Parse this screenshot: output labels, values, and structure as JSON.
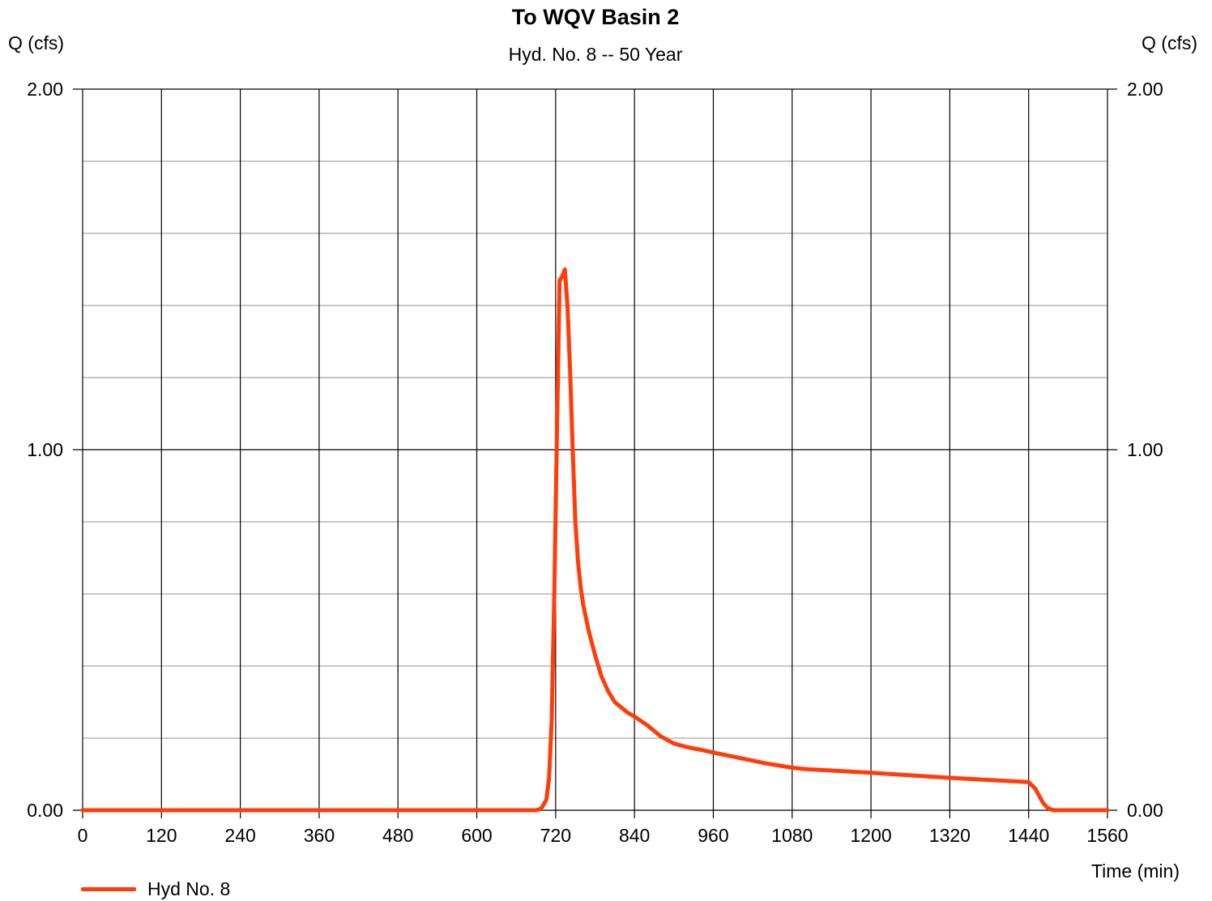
{
  "chart_data": {
    "type": "line",
    "title": "To WQV Basin 2",
    "subtitle": "Hyd. No. 8 -- 50 Year",
    "ylabel_left": "Q (cfs)",
    "ylabel_right": "Q (cfs)",
    "xlabel": "Time (min)",
    "xlim": [
      0,
      1560
    ],
    "ylim": [
      0,
      2
    ],
    "x_ticks": [
      0,
      120,
      240,
      360,
      480,
      600,
      720,
      840,
      960,
      1080,
      1200,
      1320,
      1440,
      1560
    ],
    "y_ticks": [
      "0.00",
      "1.00",
      "2.00"
    ],
    "y_minor_step": 0.2,
    "grid": true,
    "legend_position": "bottom-left",
    "series": [
      {
        "name": "Hyd No. 8",
        "color": "#ff3c0a",
        "x": [
          0,
          600,
          690,
          696,
          700,
          706,
          710,
          714,
          718,
          722,
          726,
          730,
          734,
          738,
          742,
          746,
          750,
          754,
          758,
          762,
          770,
          780,
          790,
          800,
          810,
          820,
          830,
          840,
          860,
          880,
          900,
          920,
          940,
          960,
          1000,
          1040,
          1080,
          1100,
          1140,
          1200,
          1260,
          1320,
          1380,
          1440,
          1450,
          1456,
          1462,
          1468,
          1474,
          1480,
          1560
        ],
        "y": [
          0,
          0,
          0,
          0.003,
          0.01,
          0.03,
          0.09,
          0.25,
          0.6,
          1.05,
          1.47,
          1.48,
          1.5,
          1.4,
          1.22,
          1.0,
          0.8,
          0.69,
          0.62,
          0.57,
          0.5,
          0.43,
          0.37,
          0.33,
          0.3,
          0.285,
          0.27,
          0.26,
          0.235,
          0.205,
          0.185,
          0.175,
          0.168,
          0.16,
          0.145,
          0.13,
          0.118,
          0.114,
          0.11,
          0.104,
          0.097,
          0.09,
          0.084,
          0.078,
          0.06,
          0.04,
          0.02,
          0.008,
          0.002,
          0,
          0
        ]
      }
    ]
  }
}
